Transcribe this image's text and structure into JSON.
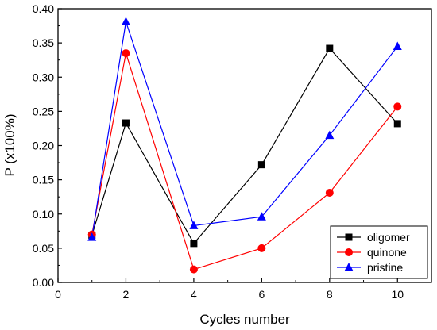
{
  "chart_data": {
    "type": "line",
    "title": "",
    "xlabel": "Cycles number",
    "ylabel": "P (x100%)",
    "xlim": [
      0,
      11
    ],
    "ylim": [
      0.0,
      0.4
    ],
    "xticks": [
      0,
      2,
      4,
      6,
      8,
      10
    ],
    "yticks": [
      0.0,
      0.05,
      0.1,
      0.15,
      0.2,
      0.25,
      0.3,
      0.35,
      0.4
    ],
    "xtick_labels": [
      "0",
      "2",
      "4",
      "6",
      "8",
      "10"
    ],
    "ytick_labels": [
      "0.00",
      "0.05",
      "0.10",
      "0.15",
      "0.20",
      "0.25",
      "0.30",
      "0.35",
      "0.40"
    ],
    "grid": false,
    "legend_position": "bottom-right",
    "series": [
      {
        "name": "oligomer",
        "color": "#000000",
        "marker": "square",
        "x": [
          1,
          2,
          4,
          6,
          8,
          10
        ],
        "y": [
          0.069,
          0.233,
          0.057,
          0.172,
          0.342,
          0.232
        ]
      },
      {
        "name": "quinone",
        "color": "#ff0000",
        "marker": "circle",
        "x": [
          1,
          2,
          4,
          6,
          8,
          10
        ],
        "y": [
          0.07,
          0.335,
          0.019,
          0.05,
          0.131,
          0.257
        ]
      },
      {
        "name": "pristine",
        "color": "#0000ff",
        "marker": "triangle",
        "x": [
          1,
          2,
          4,
          6,
          8,
          10
        ],
        "y": [
          0.066,
          0.381,
          0.083,
          0.096,
          0.215,
          0.345
        ]
      }
    ]
  }
}
